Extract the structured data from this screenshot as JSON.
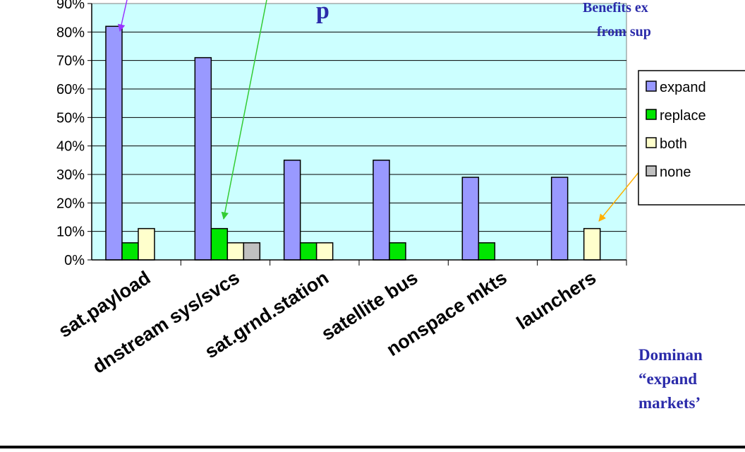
{
  "slide": {
    "title_fragment": "p",
    "top_note_lines": [
      "Benefits ex",
      "from sup"
    ],
    "bottom_note_lines": [
      "Dominan",
      "“expand",
      "markets’"
    ]
  },
  "chart_data": {
    "type": "bar",
    "categories": [
      "sat.payload",
      "dnstream sys/svcs",
      "sat.grnd.station",
      "satellite bus",
      "nonspace mkts",
      "launchers"
    ],
    "series": [
      {
        "name": "expand",
        "color": "#9999ff",
        "values": [
          82,
          71,
          35,
          35,
          29,
          29
        ]
      },
      {
        "name": "replace",
        "color": "#00e600",
        "values": [
          6,
          11,
          6,
          6,
          6,
          0
        ]
      },
      {
        "name": "both",
        "color": "#ffffcc",
        "values": [
          11,
          6,
          6,
          0,
          0,
          11
        ]
      },
      {
        "name": "none",
        "color": "#c0c0c0",
        "values": [
          0,
          6,
          0,
          0,
          0,
          0
        ]
      }
    ],
    "y_ticks": [
      "90%",
      "80%",
      "70%",
      "60%",
      "50%",
      "40%",
      "30%",
      "20%",
      "10%",
      "0%"
    ],
    "ylim": [
      0,
      90
    ],
    "grid": true,
    "legend_position": "right",
    "plot_background": "#ccffff",
    "annotation_arrow_colors": [
      "#9933ff",
      "#33cc33",
      "#ffb000"
    ]
  }
}
